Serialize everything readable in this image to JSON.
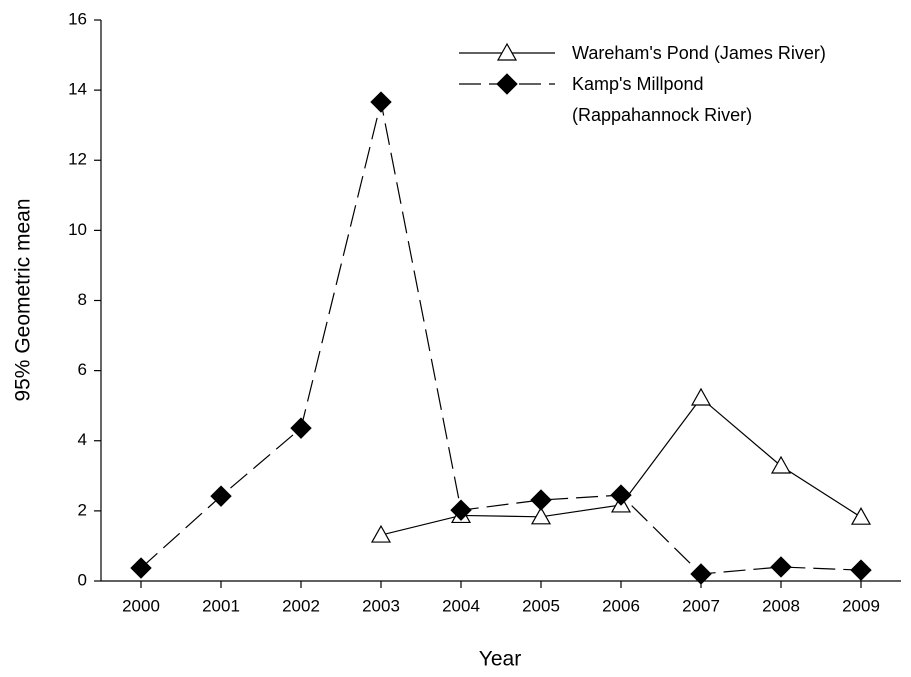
{
  "chart_data": {
    "type": "line",
    "x_label": "Year",
    "y_label": "95% Geometric mean",
    "x": [
      2000,
      2001,
      2002,
      2003,
      2004,
      2005,
      2006,
      2007,
      2008,
      2009
    ],
    "series": [
      {
        "name": "Wareham's Pond (James River)",
        "color": "#000000",
        "marker": "triangle-open",
        "dash": false,
        "values": [
          null,
          null,
          null,
          1.31,
          1.87,
          1.83,
          2.17,
          5.22,
          3.28,
          1.82
        ]
      },
      {
        "name": "Kamp's Millpond (Rappahannock River)",
        "color": "#000000",
        "marker": "diamond-filled",
        "dash": true,
        "values": [
          0.37,
          2.42,
          4.36,
          13.66,
          2.02,
          2.31,
          2.45,
          0.2,
          0.4,
          0.31
        ]
      }
    ],
    "xlim": [
      1999.5,
      2009.5
    ],
    "xticks": [
      2000,
      2001,
      2002,
      2003,
      2004,
      2005,
      2006,
      2007,
      2008,
      2009
    ],
    "ylim": [
      0,
      16
    ],
    "yticks": [
      0,
      2,
      4,
      6,
      8,
      10,
      12,
      14,
      16
    ],
    "grid": false,
    "legend": "upper right"
  }
}
